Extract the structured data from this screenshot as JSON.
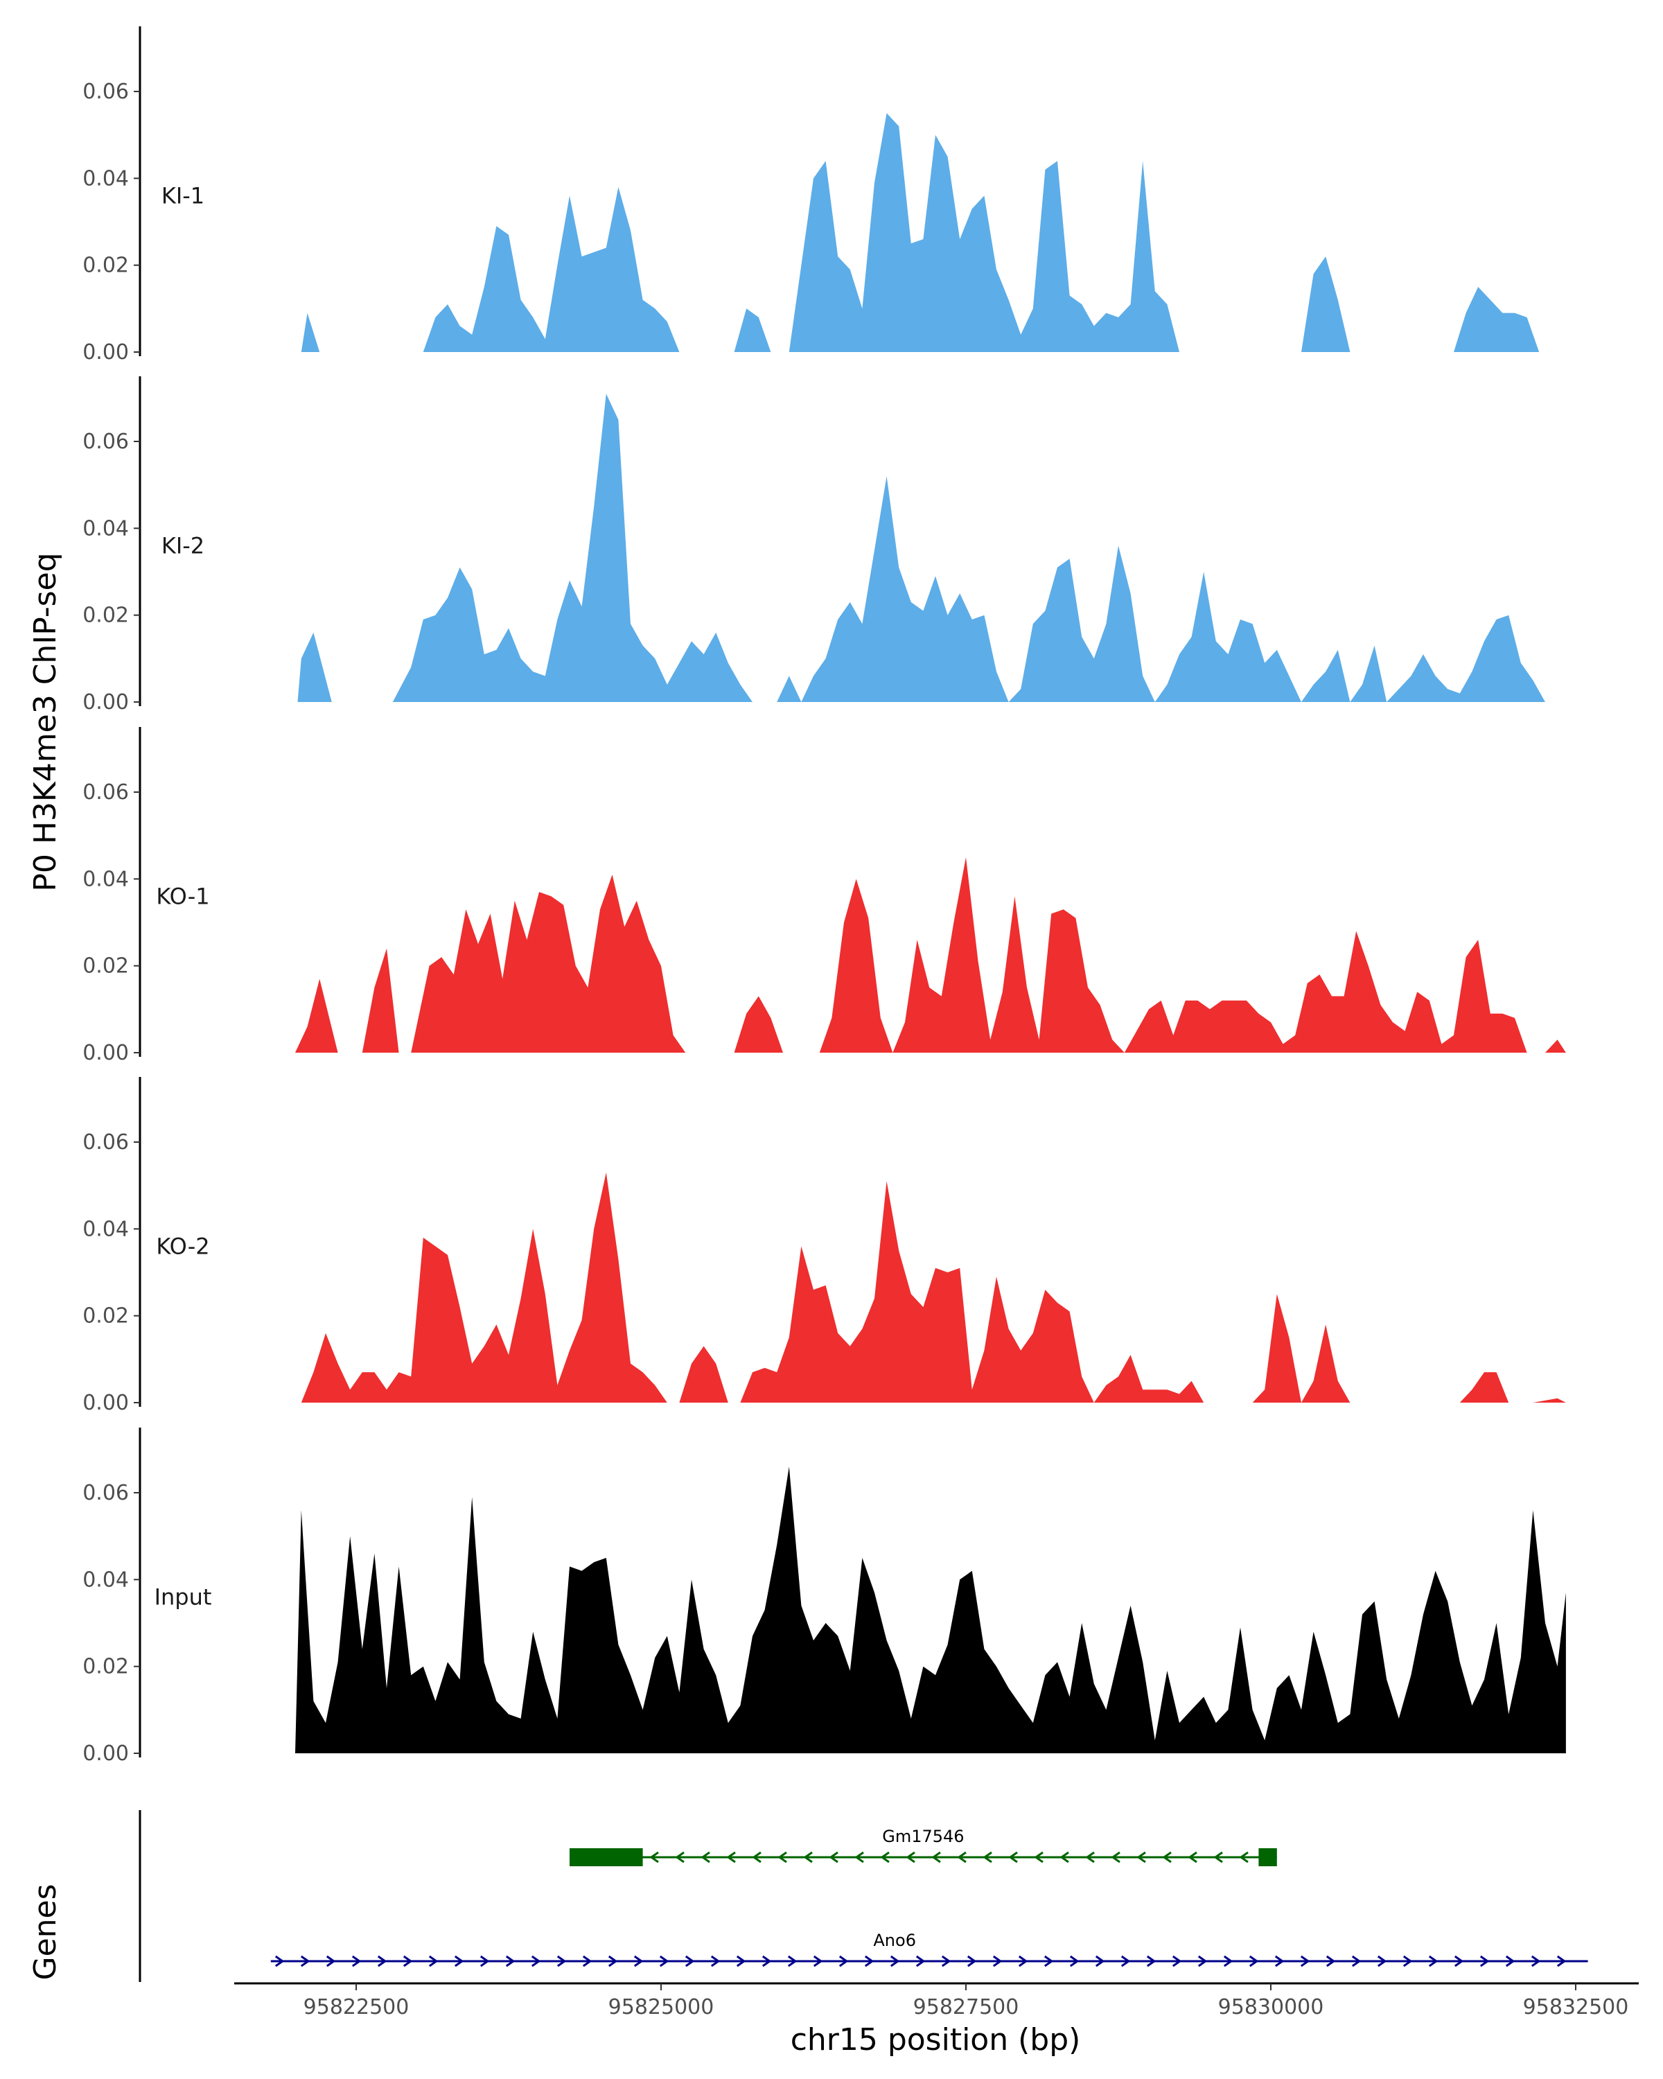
{
  "chart_data": {
    "type": "area",
    "ylabel": "P0 H3K4me3 ChIP-seq",
    "xlabel": "chr15 position (bp)",
    "x_range": [
      95821500,
      95833000
    ],
    "y_range": [
      0,
      0.075
    ],
    "y_ticks": [
      "0.00",
      "0.02",
      "0.04",
      "0.06"
    ],
    "y_tick_values": [
      0,
      0.02,
      0.04,
      0.06
    ],
    "x_ticks": [
      "95822500",
      "95825000",
      "95827500",
      "95830000",
      "95832500"
    ],
    "x_tick_values": [
      95822500,
      95825000,
      95827500,
      95830000,
      95832500
    ],
    "grid": false,
    "series": [
      {
        "name": "KI-1",
        "color": "#5dade8",
        "x": [
          95822050,
          95822100,
          95822200,
          95823050,
          95823150,
          95823250,
          95823350,
          95823450,
          95823550,
          95823650,
          95823750,
          95823850,
          95823950,
          95824050,
          95824150,
          95824250,
          95824350,
          95824450,
          95824550,
          95824650,
          95824750,
          95824850,
          95824950,
          95825050,
          95825150,
          95825600,
          95825700,
          95825800,
          95825900,
          95826050,
          95826150,
          95826250,
          95826350,
          95826450,
          95826550,
          95826650,
          95826750,
          95826850,
          95826950,
          95827050,
          95827150,
          95827250,
          95827350,
          95827450,
          95827550,
          95827650,
          95827750,
          95827850,
          95827950,
          95828050,
          95828150,
          95828250,
          95828350,
          95828450,
          95828550,
          95828650,
          95828750,
          95828850,
          95828950,
          95829050,
          95829150,
          95829250,
          95829350,
          95829450,
          95829550,
          95829650,
          95829750,
          95830250,
          95830350,
          95830450,
          95830550,
          95830650,
          95831500,
          95831600,
          95831700,
          95831800,
          95831900,
          95832000,
          95832100,
          95832200
        ],
        "values": [
          0,
          0.009,
          0,
          0,
          0.008,
          0.011,
          0.006,
          0.004,
          0.015,
          0.029,
          0.027,
          0.012,
          0.008,
          0.003,
          0.02,
          0.036,
          0.022,
          0.023,
          0.024,
          0.038,
          0.028,
          0.012,
          0.01,
          0.007,
          0,
          0,
          0.01,
          0.008,
          0,
          0,
          0.02,
          0.04,
          0.044,
          0.022,
          0.019,
          0.01,
          0.039,
          0.055,
          0.052,
          0.025,
          0.026,
          0.05,
          0.045,
          0.026,
          0.033,
          0.036,
          0.019,
          0.012,
          0.004,
          0.01,
          0.042,
          0.044,
          0.013,
          0.011,
          0.006,
          0.009,
          0.008,
          0.011,
          0.044,
          0.014,
          0.011,
          0.0,
          0.0,
          0.0,
          0.0,
          0.0,
          0.0,
          0,
          0.018,
          0.022,
          0.012,
          0,
          0,
          0.009,
          0.015,
          0.012,
          0.009,
          0.009,
          0.008,
          0
        ],
        "label": "KI-1"
      },
      {
        "name": "KI-2",
        "color": "#5dade8",
        "x": [
          95822020,
          95822050,
          95822150,
          95822300,
          95822800,
          95822950,
          95823050,
          95823150,
          95823250,
          95823350,
          95823450,
          95823550,
          95823650,
          95823750,
          95823850,
          95823950,
          95824050,
          95824150,
          95824250,
          95824350,
          95824450,
          95824550,
          95824650,
          95824750,
          95824850,
          95824950,
          95825050,
          95825150,
          95825250,
          95825350,
          95825450,
          95825550,
          95825650,
          95825750,
          95825850,
          95825950,
          95826050,
          95826150,
          95826250,
          95826350,
          95826450,
          95826550,
          95826650,
          95826750,
          95826850,
          95826950,
          95827050,
          95827150,
          95827250,
          95827350,
          95827450,
          95827550,
          95827650,
          95827750,
          95827850,
          95827950,
          95828050,
          95828150,
          95828250,
          95828350,
          95828450,
          95828550,
          95828650,
          95828750,
          95828850,
          95828950,
          95829050,
          95829150,
          95829250,
          95829350,
          95829450,
          95829550,
          95829650,
          95829750,
          95829850,
          95829950,
          95830050,
          95830150,
          95830250,
          95830350,
          95830450,
          95830550,
          95830650,
          95830750,
          95830850,
          95830950,
          95831050,
          95831150,
          95831250,
          95831350,
          95831450,
          95831550,
          95831650,
          95831750,
          95831850,
          95831950,
          95832050,
          95832150,
          95832250
        ],
        "values": [
          0,
          0.01,
          0.016,
          0,
          0,
          0.008,
          0.019,
          0.02,
          0.024,
          0.031,
          0.026,
          0.011,
          0.012,
          0.017,
          0.01,
          0.007,
          0.006,
          0.019,
          0.028,
          0.022,
          0.045,
          0.071,
          0.065,
          0.018,
          0.013,
          0.01,
          0.004,
          0.009,
          0.014,
          0.011,
          0.016,
          0.009,
          0.004,
          0.0,
          0.0,
          0.0,
          0.006,
          0.0,
          0.006,
          0.01,
          0.019,
          0.023,
          0.018,
          0.035,
          0.052,
          0.031,
          0.023,
          0.021,
          0.029,
          0.02,
          0.025,
          0.019,
          0.02,
          0.007,
          0.0,
          0.003,
          0.018,
          0.021,
          0.031,
          0.033,
          0.015,
          0.01,
          0.018,
          0.036,
          0.025,
          0.006,
          0.0,
          0.004,
          0.011,
          0.015,
          0.03,
          0.014,
          0.011,
          0.019,
          0.018,
          0.009,
          0.012,
          0.006,
          0.0,
          0.004,
          0.007,
          0.012,
          0.0,
          0.004,
          0.013,
          0.0,
          0.003,
          0.006,
          0.011,
          0.006,
          0.003,
          0.002,
          0.007,
          0.014,
          0.019,
          0.02,
          0.009,
          0.005,
          0
        ],
        "label": "KI-2"
      },
      {
        "name": "KO-1",
        "color": "#ee2e2f",
        "x": [
          95822000,
          95822100,
          95822200,
          95822350,
          95822550,
          95822650,
          95822750,
          95822850,
          95822950,
          95823100,
          95823200,
          95823300,
          95823400,
          95823500,
          95823600,
          95823700,
          95823800,
          95823900,
          95824000,
          95824100,
          95824200,
          95824300,
          95824400,
          95824500,
          95824600,
          95824700,
          95824800,
          95824900,
          95825000,
          95825100,
          95825200,
          95825300,
          95825600,
          95825700,
          95825800,
          95825900,
          95826000,
          95826300,
          95826400,
          95826500,
          95826600,
          95826700,
          95826800,
          95826900,
          95827000,
          95827100,
          95827200,
          95827300,
          95827400,
          95827500,
          95827600,
          95827700,
          95827800,
          95827900,
          95828000,
          95828100,
          95828200,
          95828300,
          95828400,
          95828500,
          95828600,
          95828700,
          95828800,
          95828900,
          95829000,
          95829100,
          95829200,
          95829300,
          95829400,
          95829500,
          95829600,
          95829700,
          95829800,
          95829900,
          95830000,
          95830100,
          95830200,
          95830300,
          95830400,
          95830500,
          95830600,
          95830700,
          95830800,
          95830900,
          95831000,
          95831100,
          95831200,
          95831300,
          95831400,
          95831500,
          95831600,
          95831700,
          95831800,
          95831900,
          95832000,
          95832100,
          95832250,
          95832350,
          95832420
        ],
        "values": [
          0,
          0.006,
          0.017,
          0,
          0,
          0.015,
          0.024,
          0,
          0,
          0.02,
          0.022,
          0.018,
          0.033,
          0.025,
          0.032,
          0.017,
          0.035,
          0.026,
          0.037,
          0.036,
          0.034,
          0.02,
          0.015,
          0.033,
          0.041,
          0.029,
          0.035,
          0.026,
          0.02,
          0.004,
          0,
          0,
          0,
          0.009,
          0.013,
          0.008,
          0,
          0,
          0.008,
          0.03,
          0.04,
          0.031,
          0.008,
          0,
          0.007,
          0.026,
          0.015,
          0.013,
          0.03,
          0.045,
          0.021,
          0.003,
          0.014,
          0.036,
          0.015,
          0.003,
          0.032,
          0.033,
          0.031,
          0.015,
          0.011,
          0.003,
          0.0,
          0.005,
          0.01,
          0.012,
          0.004,
          0.012,
          0.012,
          0.01,
          0.012,
          0.012,
          0.012,
          0.009,
          0.007,
          0.002,
          0.004,
          0.016,
          0.018,
          0.013,
          0.013,
          0.028,
          0.02,
          0.011,
          0.007,
          0.005,
          0.014,
          0.012,
          0.002,
          0.004,
          0.022,
          0.026,
          0.009,
          0.009,
          0.008,
          0,
          0,
          0.003,
          0
        ],
        "label": "KO-1"
      },
      {
        "name": "KO-2",
        "color": "#ee2e2f",
        "x": [
          95822050,
          95822150,
          95822250,
          95822350,
          95822450,
          95822550,
          95822650,
          95822750,
          95822850,
          95822950,
          95823050,
          95823150,
          95823250,
          95823350,
          95823450,
          95823550,
          95823650,
          95823750,
          95823850,
          95823950,
          95824050,
          95824150,
          95824250,
          95824350,
          95824450,
          95824550,
          95824650,
          95824750,
          95824850,
          95824950,
          95825050,
          95825150,
          95825250,
          95825350,
          95825450,
          95825550,
          95825650,
          95825750,
          95825850,
          95825950,
          95826050,
          95826150,
          95826250,
          95826350,
          95826450,
          95826550,
          95826650,
          95826750,
          95826850,
          95826950,
          95827050,
          95827150,
          95827250,
          95827350,
          95827450,
          95827550,
          95827650,
          95827750,
          95827850,
          95827950,
          95828050,
          95828150,
          95828250,
          95828350,
          95828450,
          95828550,
          95828650,
          95828750,
          95828850,
          95828950,
          95829050,
          95829150,
          95829250,
          95829350,
          95829450,
          95829550,
          95829650,
          95829750,
          95829850,
          95829950,
          95830050,
          95830150,
          95830250,
          95830350,
          95830450,
          95830550,
          95830650,
          95830750,
          95830850,
          95830950,
          95831050,
          95831150,
          95831250,
          95831350,
          95831450,
          95831550,
          95831650,
          95831750,
          95831850,
          95831950,
          95832050,
          95832150,
          95832350,
          95832420
        ],
        "values": [
          0,
          0.007,
          0.016,
          0.009,
          0.003,
          0.007,
          0.007,
          0.003,
          0.007,
          0.006,
          0.038,
          0.036,
          0.034,
          0.022,
          0.009,
          0.013,
          0.018,
          0.011,
          0.024,
          0.04,
          0.025,
          0.004,
          0.012,
          0.019,
          0.04,
          0.053,
          0.033,
          0.009,
          0.007,
          0.004,
          0,
          0,
          0.009,
          0.013,
          0.009,
          0,
          0,
          0.007,
          0.008,
          0.007,
          0.015,
          0.036,
          0.026,
          0.027,
          0.016,
          0.013,
          0.017,
          0.024,
          0.051,
          0.035,
          0.025,
          0.022,
          0.031,
          0.03,
          0.031,
          0.003,
          0.012,
          0.029,
          0.017,
          0.012,
          0.016,
          0.026,
          0.023,
          0.021,
          0.006,
          0.0,
          0.004,
          0.006,
          0.011,
          0.003,
          0.003,
          0.003,
          0.002,
          0.005,
          0.0,
          0.0,
          0.0,
          0.0,
          0.0,
          0.003,
          0.025,
          0.015,
          0.0,
          0.005,
          0.018,
          0.005,
          0.0,
          0.0,
          0.0,
          0.0,
          0.0,
          0.0,
          0.0,
          0.0,
          0.0,
          0.0,
          0.003,
          0.007,
          0.007,
          0.0,
          0.0,
          0.0,
          0.001,
          0
        ],
        "label": "KO-2"
      },
      {
        "name": "Input",
        "color": "#000000",
        "x": [
          95822000,
          95822050,
          95822150,
          95822250,
          95822350,
          95822450,
          95822550,
          95822650,
          95822750,
          95822850,
          95822950,
          95823050,
          95823150,
          95823250,
          95823350,
          95823450,
          95823550,
          95823650,
          95823750,
          95823850,
          95823950,
          95824050,
          95824150,
          95824250,
          95824350,
          95824450,
          95824550,
          95824650,
          95824750,
          95824850,
          95824950,
          95825050,
          95825150,
          95825250,
          95825350,
          95825450,
          95825550,
          95825650,
          95825750,
          95825850,
          95825950,
          95826050,
          95826150,
          95826250,
          95826350,
          95826450,
          95826550,
          95826650,
          95826750,
          95826850,
          95826950,
          95827050,
          95827150,
          95827250,
          95827350,
          95827450,
          95827550,
          95827650,
          95827750,
          95827850,
          95827950,
          95828050,
          95828150,
          95828250,
          95828350,
          95828450,
          95828550,
          95828650,
          95828750,
          95828850,
          95828950,
          95829050,
          95829150,
          95829250,
          95829350,
          95829450,
          95829550,
          95829650,
          95829750,
          95829850,
          95829950,
          95830050,
          95830150,
          95830250,
          95830350,
          95830450,
          95830550,
          95830650,
          95830750,
          95830850,
          95830950,
          95831050,
          95831150,
          95831250,
          95831350,
          95831450,
          95831550,
          95831650,
          95831750,
          95831850,
          95831950,
          95832050,
          95832150,
          95832250,
          95832350,
          95832420
        ],
        "values": [
          0,
          0.056,
          0.012,
          0.007,
          0.021,
          0.05,
          0.024,
          0.046,
          0.015,
          0.043,
          0.018,
          0.02,
          0.012,
          0.021,
          0.017,
          0.059,
          0.021,
          0.012,
          0.009,
          0.008,
          0.028,
          0.017,
          0.008,
          0.043,
          0.042,
          0.044,
          0.045,
          0.025,
          0.018,
          0.01,
          0.022,
          0.027,
          0.014,
          0.04,
          0.024,
          0.018,
          0.007,
          0.011,
          0.027,
          0.033,
          0.048,
          0.066,
          0.034,
          0.026,
          0.03,
          0.027,
          0.019,
          0.045,
          0.037,
          0.026,
          0.019,
          0.008,
          0.02,
          0.018,
          0.025,
          0.04,
          0.042,
          0.024,
          0.02,
          0.015,
          0.011,
          0.007,
          0.018,
          0.021,
          0.013,
          0.03,
          0.016,
          0.01,
          0.022,
          0.034,
          0.021,
          0.003,
          0.019,
          0.007,
          0.01,
          0.013,
          0.007,
          0.01,
          0.029,
          0.01,
          0.003,
          0.015,
          0.018,
          0.01,
          0.028,
          0.018,
          0.007,
          0.009,
          0.032,
          0.035,
          0.017,
          0.008,
          0.018,
          0.032,
          0.042,
          0.035,
          0.021,
          0.011,
          0.017,
          0.03,
          0.009,
          0.022,
          0.056,
          0.03,
          0.02,
          0.037
        ],
        "label": "Input"
      }
    ],
    "genes_label": "Genes",
    "genes": [
      {
        "name": "Gm17546",
        "color": "#006400",
        "start": 95824250,
        "end": 95830050,
        "strand": "-",
        "thick_blocks": [
          [
            95824250,
            95824850
          ],
          [
            95829900,
            95830050
          ]
        ]
      },
      {
        "name": "Ano6",
        "color": "#00008b",
        "start": 95821800,
        "end": 95832600,
        "strand": "+",
        "thick_blocks": []
      }
    ]
  }
}
